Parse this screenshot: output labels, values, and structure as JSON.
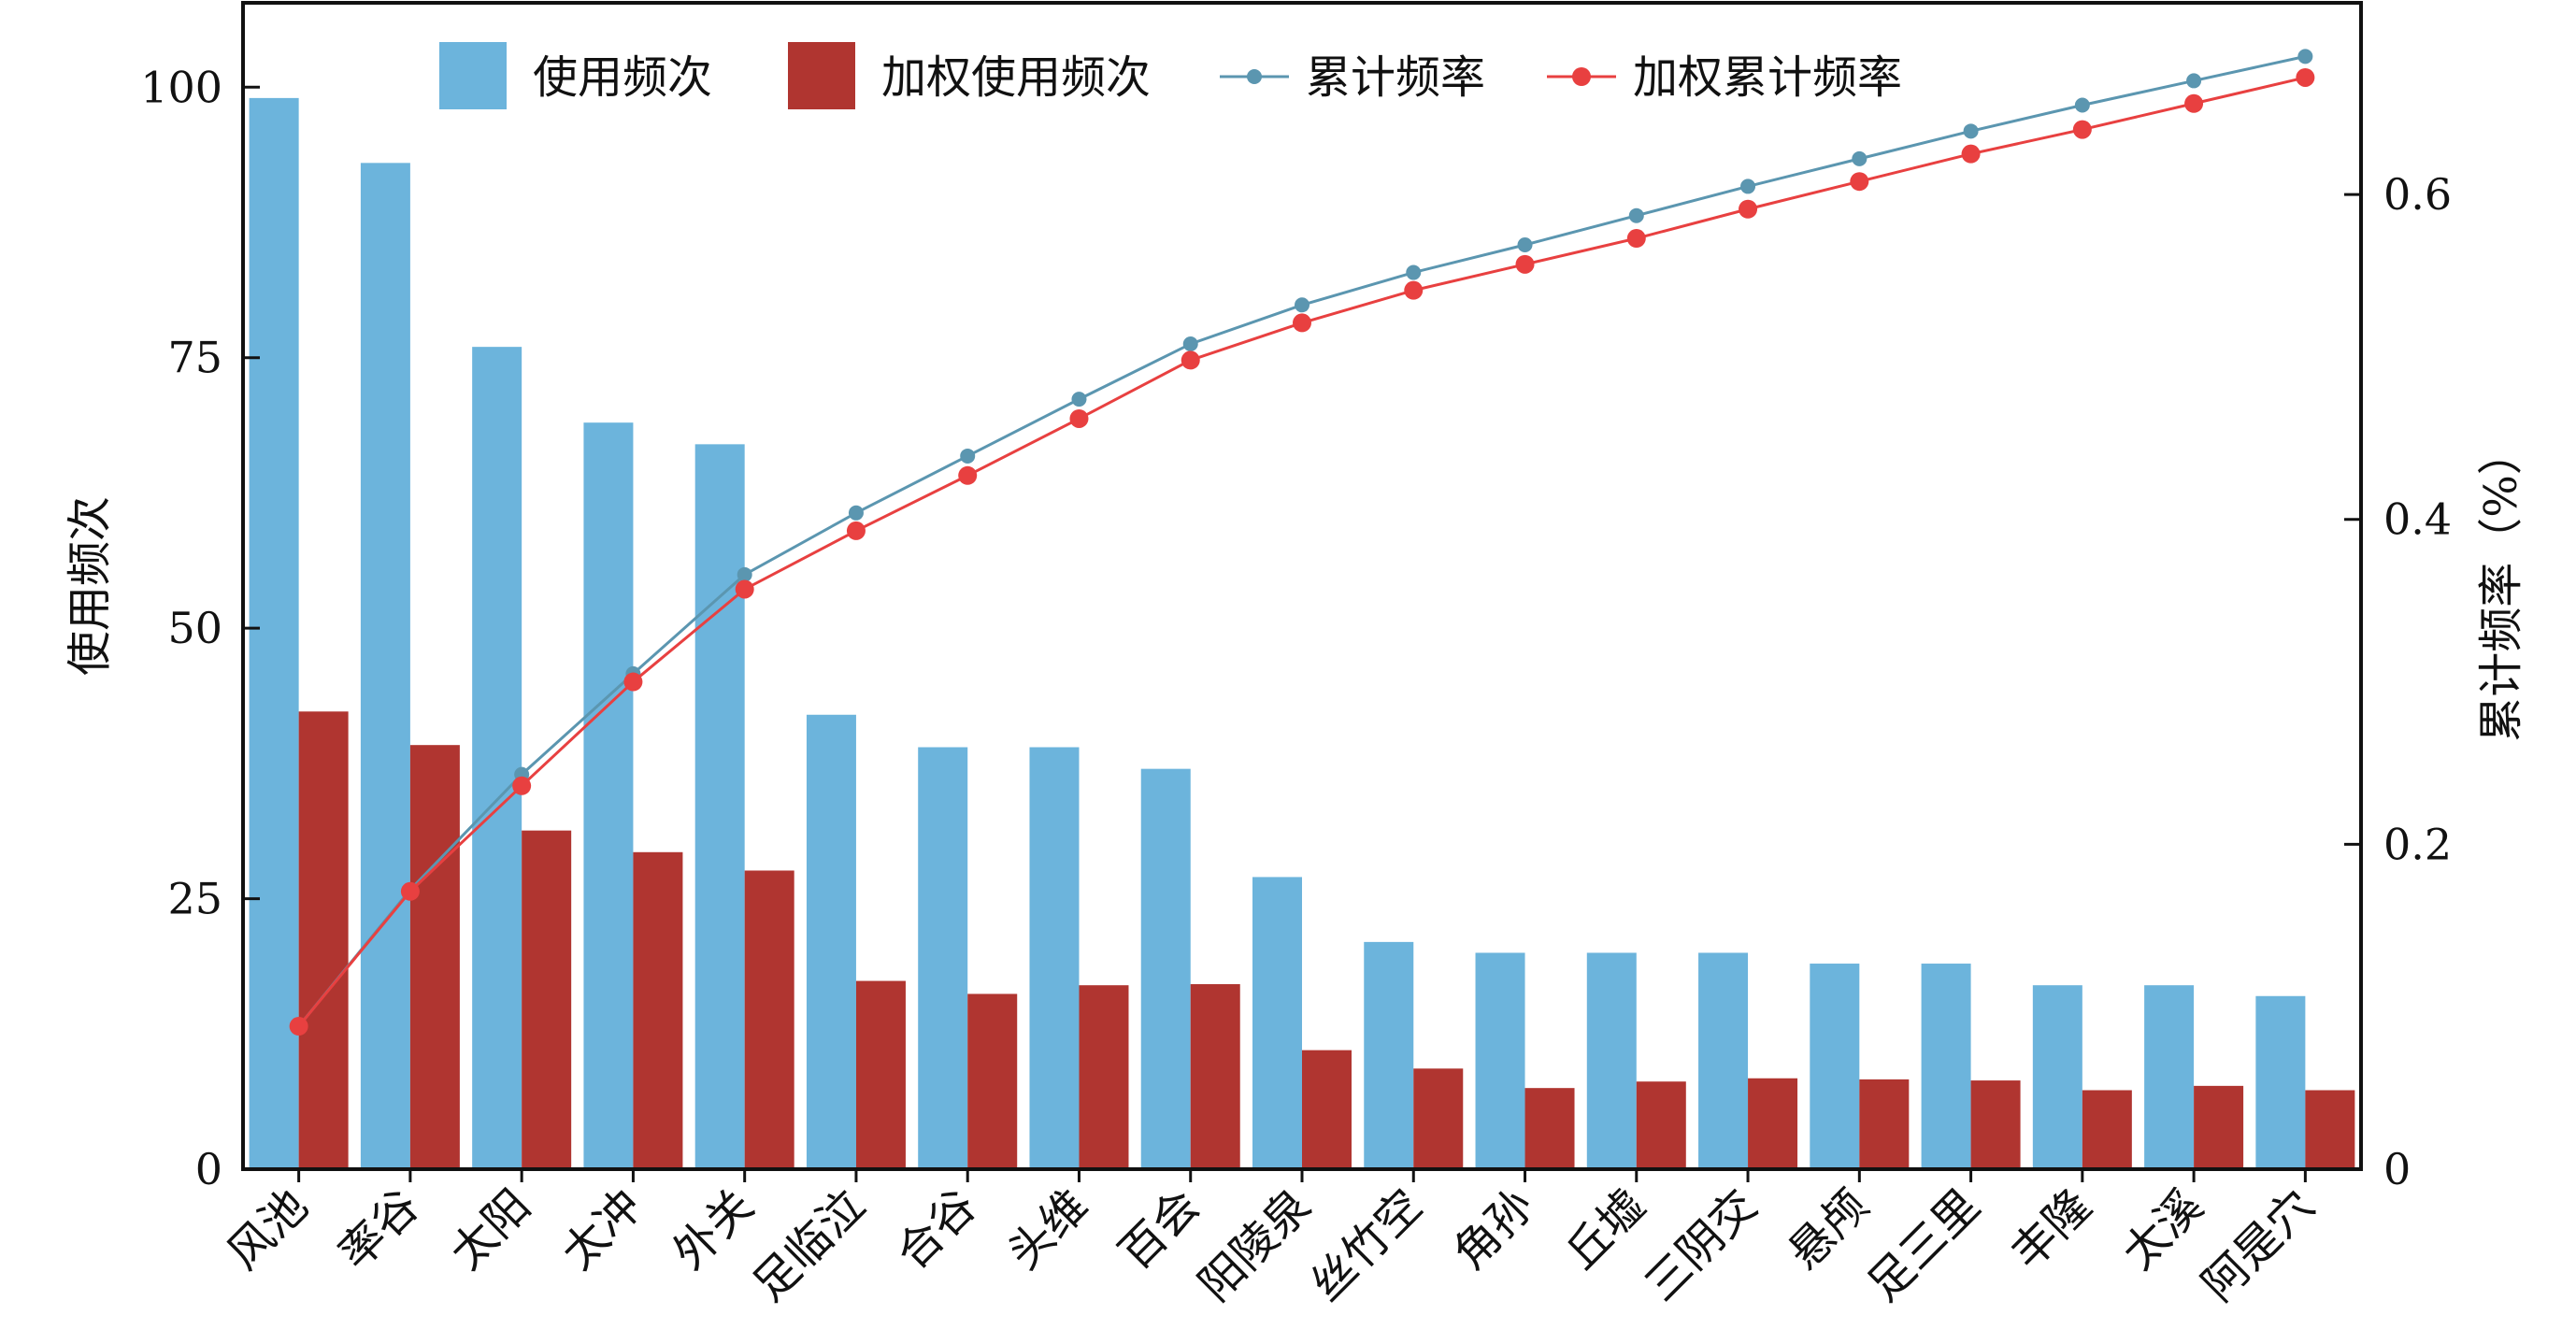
{
  "chart_data": {
    "type": "bar",
    "categories": [
      "风池",
      "率谷",
      "太阳",
      "太冲",
      "外关",
      "足临泣",
      "合谷",
      "头维",
      "百会",
      "阳陵泉",
      "丝竹空",
      "角孙",
      "丘墟",
      "三阴交",
      "悬颅",
      "足三里",
      "丰隆",
      "太溪",
      "阿是穴"
    ],
    "series": [
      {
        "name": "使用频次",
        "kind": "bar",
        "axis": "left",
        "color": "#6cb4dc",
        "values": [
          99,
          93,
          76,
          69,
          67,
          42,
          39,
          39,
          37,
          27,
          21,
          20,
          20,
          20,
          19,
          19,
          17,
          17,
          16
        ]
      },
      {
        "name": "加权使用频次",
        "kind": "bar",
        "axis": "left",
        "color": "#b03530",
        "values": [
          42.3,
          39.2,
          31.3,
          29.3,
          27.6,
          17.4,
          16.2,
          17.0,
          17.1,
          11.0,
          9.3,
          7.5,
          8.1,
          8.4,
          8.3,
          8.2,
          7.3,
          7.7,
          7.3
        ]
      },
      {
        "name": "累计频率",
        "kind": "line",
        "axis": "right",
        "color": "#5b96b0",
        "values": [
          0.088,
          0.172,
          0.243,
          0.305,
          0.366,
          0.404,
          0.439,
          0.474,
          0.508,
          0.532,
          0.552,
          0.569,
          0.587,
          0.605,
          0.622,
          0.639,
          0.655,
          0.67,
          0.685
        ]
      },
      {
        "name": "加权累计频率",
        "kind": "line",
        "axis": "right",
        "color": "#e84040",
        "values": [
          0.088,
          0.171,
          0.236,
          0.3,
          0.357,
          0.393,
          0.427,
          0.462,
          0.498,
          0.521,
          0.541,
          0.557,
          0.573,
          0.591,
          0.608,
          0.625,
          0.64,
          0.656,
          0.672
        ]
      }
    ],
    "ylabel": "使用频次",
    "y2label": "累计频率（%）",
    "ylim": [
      0,
      107.8
    ],
    "y2lim": [
      0,
      0.718
    ],
    "yticks": [
      "0",
      "25",
      "50",
      "75",
      "100"
    ],
    "y2ticks": [
      "0",
      "0.2",
      "0.4",
      "0.6"
    ],
    "legend_position": "top-center",
    "grid": false
  }
}
